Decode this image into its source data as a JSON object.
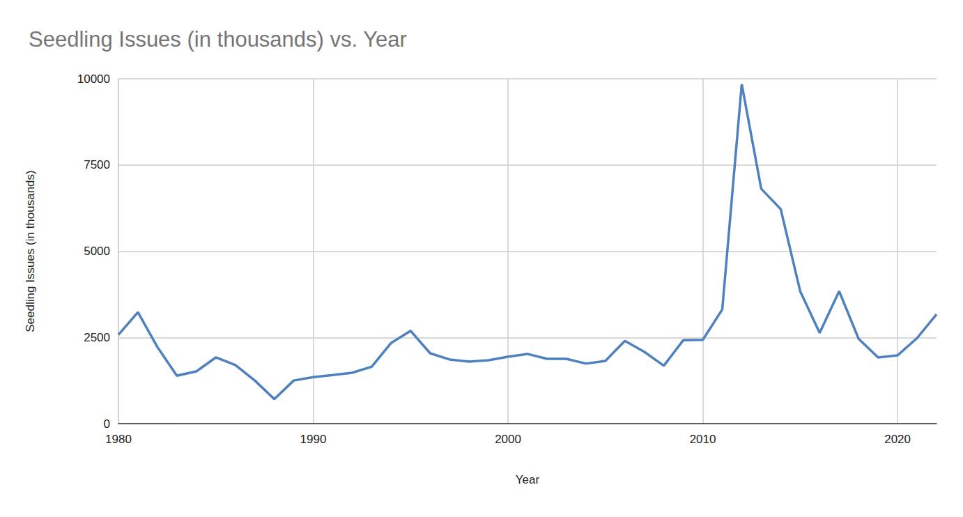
{
  "chart_data": {
    "type": "line",
    "title": "Seedling Issues (in thousands) vs. Year",
    "x_label": "Year",
    "y_label": "Seedling Issues (in thousands)",
    "x": [
      1980,
      1981,
      1982,
      1983,
      1984,
      1985,
      1986,
      1987,
      1988,
      1989,
      1990,
      1991,
      1992,
      1993,
      1994,
      1995,
      1996,
      1997,
      1998,
      1999,
      2000,
      2001,
      2002,
      2003,
      2004,
      2005,
      2006,
      2007,
      2008,
      2009,
      2010,
      2011,
      2012,
      2013,
      2014,
      2015,
      2016,
      2017,
      2018,
      2019,
      2020,
      2021,
      2022
    ],
    "values": [
      2580,
      3230,
      2220,
      1390,
      1515,
      1920,
      1700,
      1250,
      710,
      1250,
      1350,
      1410,
      1475,
      1650,
      2340,
      2690,
      2040,
      1860,
      1800,
      1840,
      1940,
      2020,
      1880,
      1880,
      1740,
      1820,
      2400,
      2080,
      1680,
      2420,
      2430,
      3310,
      9840,
      6810,
      6220,
      3840,
      2630,
      3840,
      2460,
      1920,
      1980,
      2480,
      3170
    ],
    "color": "#4e81bd",
    "xlim": [
      1980,
      2022
    ],
    "xticks": [
      1980,
      1990,
      2000,
      2010,
      2020
    ],
    "ylim": [
      0,
      10000
    ],
    "yticks": [
      0,
      2500,
      5000,
      7500,
      10000
    ],
    "grid": true
  }
}
